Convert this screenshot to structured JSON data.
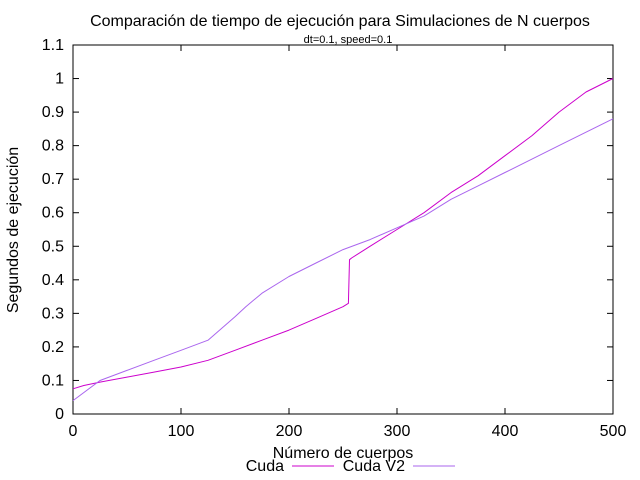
{
  "chart_data": {
    "type": "line",
    "title": "Comparación de tiempo de ejecución para Simulaciones de N cuerpos",
    "subtitle": "dt=0.1, speed=0.1",
    "xlabel": "Número de cuerpos",
    "ylabel": "Segundos de ejecución",
    "xlim": [
      0,
      500
    ],
    "ylim": [
      0,
      1.1
    ],
    "xticks": [
      "0",
      "100",
      "200",
      "300",
      "400",
      "500"
    ],
    "yticks": [
      "0",
      "0.1",
      "0.2",
      "0.3",
      "0.4",
      "0.5",
      "0.6",
      "0.7",
      "0.8",
      "0.9",
      "1",
      "1.1"
    ],
    "grid": false,
    "legend_position": "bottom",
    "series": [
      {
        "name": "Cuda",
        "color": "#cc00cc",
        "x": [
          0,
          10,
          25,
          50,
          75,
          100,
          125,
          150,
          175,
          200,
          225,
          250,
          255,
          256,
          258,
          275,
          300,
          325,
          350,
          375,
          400,
          425,
          450,
          475,
          500
        ],
        "y": [
          0.075,
          0.085,
          0.095,
          0.11,
          0.125,
          0.14,
          0.16,
          0.19,
          0.22,
          0.25,
          0.285,
          0.32,
          0.33,
          0.46,
          0.465,
          0.5,
          0.55,
          0.6,
          0.66,
          0.71,
          0.77,
          0.83,
          0.9,
          0.96,
          1.0
        ]
      },
      {
        "name": "Cuda V2",
        "color": "#aa66ee",
        "x": [
          0,
          25,
          50,
          75,
          100,
          125,
          150,
          160,
          175,
          200,
          225,
          250,
          275,
          300,
          325,
          350,
          375,
          400,
          425,
          450,
          475,
          500
        ],
        "y": [
          0.04,
          0.1,
          0.13,
          0.16,
          0.19,
          0.22,
          0.29,
          0.32,
          0.36,
          0.41,
          0.45,
          0.49,
          0.52,
          0.555,
          0.59,
          0.64,
          0.68,
          0.72,
          0.76,
          0.8,
          0.84,
          0.88
        ]
      }
    ]
  }
}
